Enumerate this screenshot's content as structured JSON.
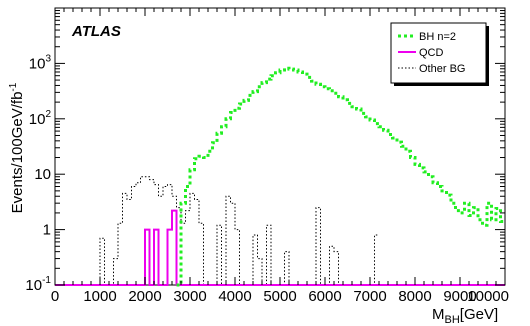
{
  "chart_data": {
    "type": "line",
    "subtype": "step-histogram",
    "experiment_label": "ATLAS",
    "xlabel": "M",
    "xlabel_sub": "BH",
    "xlabel_unit": "[GeV]",
    "ylabel": "Events/100GeV/fb",
    "ylabel_sup": "-1",
    "xlim": [
      0,
      10000
    ],
    "ylim": [
      0.1,
      10000
    ],
    "yscale": "log",
    "x_ticks": [
      0,
      1000,
      2000,
      3000,
      4000,
      5000,
      6000,
      7000,
      8000,
      9000,
      10000
    ],
    "y_ticks": [
      {
        "value": 0.1,
        "base": "10",
        "exp": "-1"
      },
      {
        "value": 1,
        "base": "1",
        "exp": ""
      },
      {
        "value": 10,
        "base": "10",
        "exp": ""
      },
      {
        "value": 100,
        "base": "10",
        "exp": "2"
      },
      {
        "value": 1000,
        "base": "10",
        "exp": "3"
      }
    ],
    "grid": false,
    "legend_position": "top-right",
    "series": [
      {
        "name": "BH n=2",
        "color": "#22ee22",
        "style": "dotted",
        "bin_edges": [
          2700,
          2800,
          2900,
          3000,
          3100,
          3200,
          3300,
          3400,
          3500,
          3600,
          3700,
          3800,
          3900,
          4000,
          4100,
          4200,
          4300,
          4400,
          4500,
          4600,
          4700,
          4800,
          4900,
          5000,
          5100,
          5200,
          5300,
          5400,
          5500,
          5600,
          5700,
          5800,
          5900,
          6000,
          6100,
          6200,
          6300,
          6400,
          6500,
          6600,
          6700,
          6800,
          6900,
          7000,
          7100,
          7200,
          7300,
          7400,
          7500,
          7600,
          7700,
          7800,
          7900,
          8000,
          8100,
          8200,
          8300,
          8400,
          8500,
          8600,
          8700,
          8800,
          8900,
          9000,
          9100,
          9200,
          9300,
          9400,
          9500,
          9600,
          9700,
          9800,
          9900,
          10000
        ],
        "values": [
          0.1,
          3,
          6,
          12,
          19,
          21,
          20,
          26,
          37,
          55,
          72,
          100,
          130,
          155,
          185,
          215,
          265,
          310,
          380,
          450,
          520,
          600,
          680,
          760,
          820,
          790,
          760,
          700,
          640,
          560,
          480,
          420,
          380,
          350,
          320,
          290,
          250,
          220,
          190,
          165,
          150,
          125,
          108,
          95,
          82,
          72,
          62,
          52,
          45,
          38,
          32,
          26,
          20,
          15,
          13,
          11,
          9,
          7,
          6,
          5,
          4.2,
          3,
          2.2,
          2,
          3,
          1.8,
          2.5,
          1.5,
          1.2,
          3,
          1.5,
          2.4,
          1.4
        ]
      },
      {
        "name": "QCD",
        "color": "#ee00ee",
        "style": "solid",
        "bin_edges": [
          0,
          2000,
          2100,
          2200,
          2300,
          2400,
          2500,
          2600,
          2700,
          2800,
          10000
        ],
        "values": [
          0.1,
          1,
          0.1,
          1,
          0.1,
          0.1,
          1,
          2.2,
          0.1,
          0.1
        ]
      },
      {
        "name": "Other BG",
        "color": "#000000",
        "style": "dotted",
        "bin_edges": [
          1000,
          1100,
          1200,
          1300,
          1400,
          1500,
          1600,
          1700,
          1800,
          1900,
          2000,
          2100,
          2200,
          2300,
          2400,
          2500,
          2600,
          2700,
          2800,
          2900,
          3000,
          3100,
          3200,
          3300,
          3400,
          3500,
          3600,
          3700,
          3800,
          3900,
          4000,
          4100,
          4200,
          4300,
          4400,
          4500,
          4600,
          4700,
          4800,
          4900,
          5000,
          5100,
          5200,
          5300,
          5400,
          5500,
          5600,
          5700,
          5800,
          5900,
          6000,
          6100,
          6200,
          6300,
          6400,
          6500,
          6600,
          6700,
          6800,
          6900,
          7000,
          7100,
          7200
        ],
        "values": [
          0.7,
          0.1,
          0.1,
          0.3,
          1.3,
          4.5,
          3.5,
          6,
          7,
          9,
          9,
          8,
          6.5,
          4,
          6,
          6.5,
          4,
          2.5,
          1.3,
          2.2,
          4.5,
          3.5,
          1.3,
          0.1,
          0.1,
          0.1,
          1.2,
          0.1,
          4,
          3,
          1,
          0.1,
          0.1,
          0.1,
          0.8,
          0.3,
          0.1,
          1.2,
          0.1,
          0.1,
          0.1,
          0.4,
          0.1,
          0.1,
          0.1,
          0.1,
          0.1,
          0.1,
          2.5,
          0.1,
          0.1,
          0.5,
          0.4,
          0.1,
          0.1,
          0.1,
          0.1,
          0.1,
          0.1,
          0.1,
          0.1,
          0.8
        ]
      }
    ]
  }
}
